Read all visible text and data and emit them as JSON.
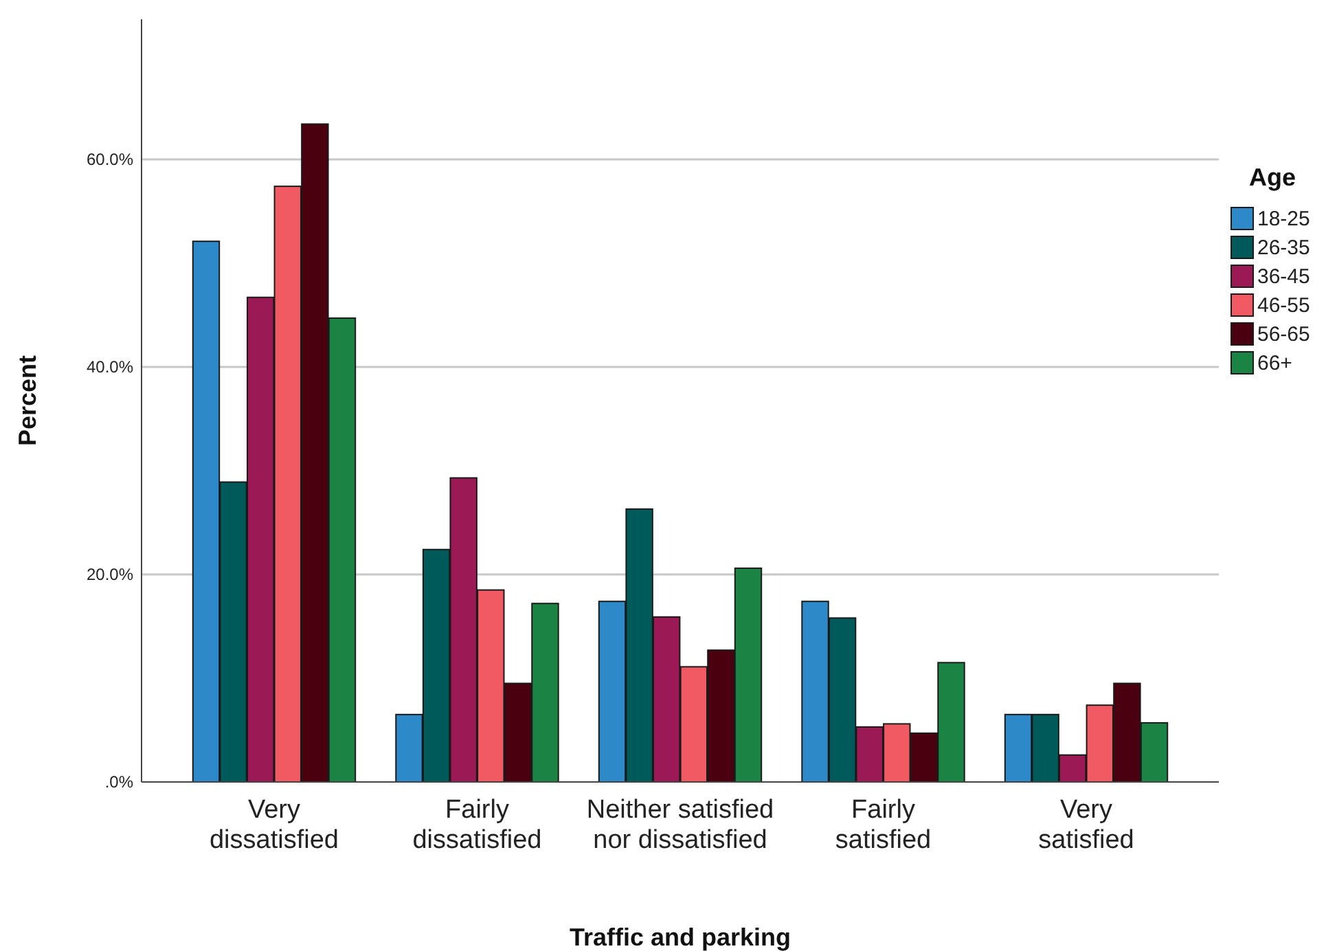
{
  "chart_data": {
    "type": "bar",
    "xlabel": "Traffic and parking",
    "ylabel": "Percent",
    "legend_title": "Age",
    "legend": "right",
    "grid": "y",
    "categories": [
      "Very dissatisfied",
      "Fairly dissatisfied",
      "Neither satisfied nor dissatisfied",
      "Fairly satisfied",
      "Very satisfied"
    ],
    "ylim": [
      0,
      73.5
    ],
    "yticks": [
      {
        "value": 0,
        "label": ".0%"
      },
      {
        "value": 20,
        "label": "20.0%"
      },
      {
        "value": 40,
        "label": "40.0%"
      },
      {
        "value": 60,
        "label": "60.0%"
      }
    ],
    "series": [
      {
        "name": "18-25",
        "color": "#2e89c9",
        "values": [
          52.1,
          6.5,
          17.4,
          17.4,
          6.5
        ]
      },
      {
        "name": "26-35",
        "color": "#005a5a",
        "values": [
          28.9,
          22.4,
          26.3,
          15.8,
          6.5
        ]
      },
      {
        "name": "36-45",
        "color": "#9b1a56",
        "values": [
          46.7,
          29.3,
          15.9,
          5.3,
          2.6
        ]
      },
      {
        "name": "46-55",
        "color": "#f25a63",
        "values": [
          57.4,
          18.5,
          11.1,
          5.6,
          7.4
        ]
      },
      {
        "name": "56-65",
        "color": "#4b0010",
        "values": [
          63.4,
          9.5,
          12.7,
          4.7,
          9.5
        ]
      },
      {
        "name": "66+",
        "color": "#1b8445",
        "values": [
          44.7,
          17.2,
          20.6,
          11.5,
          5.7
        ]
      }
    ]
  }
}
